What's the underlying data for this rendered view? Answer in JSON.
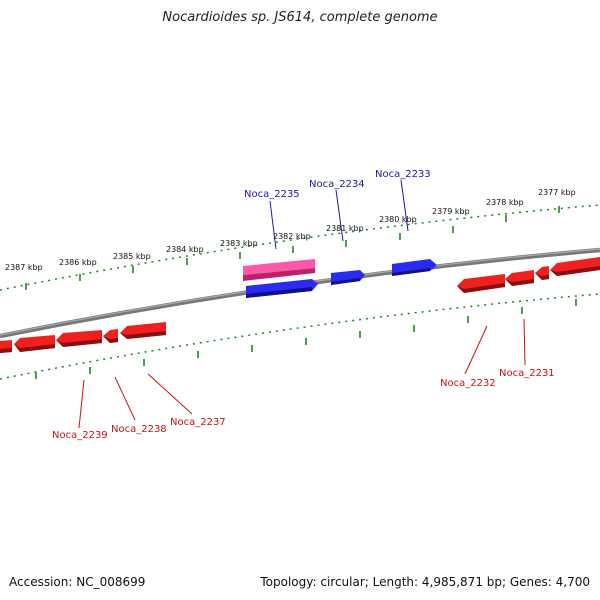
{
  "title": "Nocardioides sp. JS614, complete genome",
  "footer": {
    "accession": "Accession: NC_008699",
    "summary": "Topology: circular; Length: 4,985,871 bp; Genes: 4,700"
  },
  "colors": {
    "backbone": "#808080",
    "tick": "#1a8a1a",
    "forward_gene": "#1a1ae6",
    "forward_gene_highlight": "#e8449a",
    "reverse_gene": "#e61a1a",
    "forward_label": "#1a1aa6",
    "reverse_label": "#cc1111"
  },
  "kbp_labels": [
    "2387 kbp",
    "2386 kbp",
    "2385 kbp",
    "2384 kbp",
    "2383 kbp",
    "2382 kbp",
    "2381 kbp",
    "2380 kbp",
    "2379 kbp",
    "2378 kbp",
    "2377 kbp"
  ],
  "gene_labels": {
    "forward": [
      "Noca_2235",
      "Noca_2234",
      "Noca_2233"
    ],
    "reverse": [
      "Noca_2239",
      "Noca_2238",
      "Noca_2237",
      "Noca_2232",
      "Noca_2231"
    ]
  }
}
